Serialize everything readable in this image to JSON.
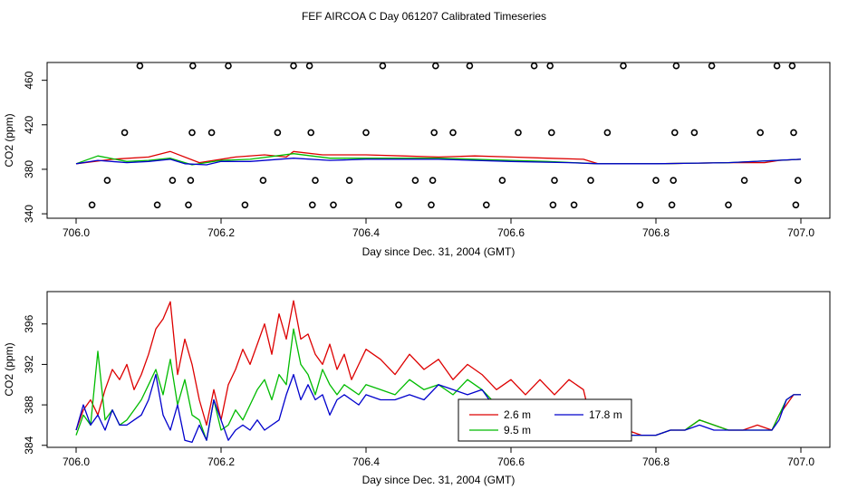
{
  "figure_title": "FEF AIRCOA C  Day 061207  Calibrated Timeseries",
  "colors": {
    "red": "#dd0000",
    "green": "#00bb00",
    "blue": "#0000cc",
    "axis": "#000000"
  },
  "chart_data": [
    {
      "type": "line",
      "name": "top-panel",
      "xlabel": "Day since Dec. 31, 2004 (GMT)",
      "ylabel": "CO2 (ppm)",
      "xlim": [
        705.96,
        707.04
      ],
      "ylim": [
        336,
        476
      ],
      "xticks": [
        706.0,
        706.2,
        706.4,
        706.6,
        706.8,
        707.0
      ],
      "xtick_labels": [
        "706.0",
        "706.2",
        "706.4",
        "706.6",
        "706.8",
        "707.0"
      ],
      "yticks": [
        340,
        380,
        420,
        460
      ],
      "ytick_labels": [
        "340",
        "380",
        "420",
        "460"
      ],
      "series": [
        {
          "name": "2.6 m",
          "color": "red",
          "x": [
            706.0,
            706.05,
            706.1,
            706.13,
            706.17,
            706.22,
            706.26,
            706.29,
            706.3,
            706.34,
            706.4,
            706.45,
            706.5,
            706.55,
            706.6,
            706.65,
            706.7,
            706.72,
            706.8,
            706.9,
            706.95,
            706.97,
            707.0
          ],
          "y": [
            385,
            389,
            391,
            396,
            386,
            391,
            393,
            391,
            396,
            393,
            393,
            392,
            391,
            392,
            391,
            390,
            389,
            385,
            385,
            386,
            386,
            388,
            389
          ]
        },
        {
          "name": "9.5 m",
          "color": "green",
          "x": [
            706.0,
            706.03,
            706.07,
            706.1,
            706.13,
            706.16,
            706.2,
            706.24,
            706.3,
            706.35,
            706.4,
            706.5,
            706.6,
            706.65,
            706.72,
            706.8,
            706.9,
            707.0
          ],
          "y": [
            385,
            392,
            387,
            388,
            390,
            384,
            388,
            389,
            394,
            390,
            390,
            390,
            388,
            387,
            385,
            385,
            386,
            389
          ]
        },
        {
          "name": "17.8 m",
          "color": "blue",
          "x": [
            706.0,
            706.03,
            706.07,
            706.1,
            706.13,
            706.15,
            706.18,
            706.2,
            706.24,
            706.3,
            706.35,
            706.4,
            706.5,
            706.6,
            706.68,
            706.72,
            706.8,
            706.9,
            707.0
          ],
          "y": [
            385,
            388,
            386,
            387,
            389,
            385,
            384,
            387,
            387,
            390,
            388,
            389,
            389,
            387,
            386,
            385,
            385,
            386,
            389
          ]
        }
      ],
      "markers": {
        "type": "scatter",
        "name": "calibration points",
        "x": [
          706.022,
          706.043,
          706.067,
          706.088,
          706.112,
          706.133,
          706.155,
          706.158,
          706.16,
          706.161,
          706.187,
          706.21,
          706.233,
          706.258,
          706.278,
          706.3,
          706.322,
          706.324,
          706.326,
          706.33,
          706.355,
          706.377,
          706.4,
          706.423,
          706.445,
          706.468,
          706.49,
          706.492,
          706.494,
          706.496,
          706.52,
          706.543,
          706.566,
          706.588,
          706.61,
          706.632,
          706.654,
          706.656,
          706.658,
          706.66,
          706.687,
          706.71,
          706.733,
          706.755,
          706.778,
          706.8,
          706.822,
          706.824,
          706.826,
          706.828,
          706.853,
          706.877,
          706.9,
          706.922,
          706.944,
          706.967,
          706.988,
          706.99,
          706.993,
          706.996
        ],
        "y": [
          348,
          370,
          413,
          473,
          348,
          370,
          348,
          370,
          413,
          473,
          413,
          473,
          348,
          370,
          413,
          473,
          473,
          413,
          348,
          370,
          348,
          370,
          413,
          473,
          348,
          370,
          348,
          370,
          413,
          473,
          413,
          473,
          348,
          370,
          413,
          473,
          473,
          413,
          348,
          370,
          348,
          370,
          413,
          473,
          348,
          370,
          348,
          370,
          413,
          473,
          413,
          473,
          348,
          370,
          413,
          473,
          473,
          413,
          348,
          370
        ]
      }
    },
    {
      "type": "line",
      "name": "bottom-panel",
      "xlabel": "Day since Dec. 31, 2004 (GMT)",
      "ylabel": "CO2 (ppm)",
      "xlim": [
        705.96,
        707.04
      ],
      "ylim": [
        383.8,
        399.2
      ],
      "xticks": [
        706.0,
        706.2,
        706.4,
        706.6,
        706.8,
        707.0
      ],
      "xtick_labels": [
        "706.0",
        "706.2",
        "706.4",
        "706.6",
        "706.8",
        "707.0"
      ],
      "yticks": [
        384,
        388,
        392,
        396
      ],
      "ytick_labels": [
        "384",
        "388",
        "392",
        "396"
      ],
      "legend": {
        "position": "bottom-center",
        "entries": [
          "2.6 m",
          "9.5 m",
          "17.8 m"
        ]
      },
      "series": [
        {
          "name": "2.6 m",
          "color": "red",
          "x": [
            706.0,
            706.01,
            706.02,
            706.03,
            706.04,
            706.05,
            706.06,
            706.07,
            706.08,
            706.09,
            706.1,
            706.11,
            706.12,
            706.13,
            706.14,
            706.15,
            706.16,
            706.17,
            706.18,
            706.19,
            706.2,
            706.21,
            706.22,
            706.23,
            706.24,
            706.25,
            706.26,
            706.27,
            706.28,
            706.29,
            706.3,
            706.31,
            706.32,
            706.33,
            706.34,
            706.35,
            706.36,
            706.37,
            706.38,
            706.39,
            706.4,
            706.42,
            706.44,
            706.46,
            706.48,
            706.5,
            706.52,
            706.54,
            706.56,
            706.58,
            706.6,
            706.62,
            706.64,
            706.66,
            706.68,
            706.7,
            706.71,
            706.72,
            706.74,
            706.76,
            706.78,
            706.8,
            706.82,
            706.84,
            706.86,
            706.88,
            706.9,
            706.92,
            706.94,
            706.96,
            706.97,
            706.98,
            706.99,
            707.0
          ],
          "y": [
            385.5,
            387.5,
            388.5,
            387.0,
            389.5,
            391.5,
            390.5,
            392.0,
            389.5,
            391.0,
            393.0,
            395.5,
            396.5,
            398.2,
            391.0,
            394.5,
            392.0,
            388.5,
            386.0,
            389.5,
            386.5,
            390.0,
            391.5,
            393.5,
            392.0,
            394.0,
            396.0,
            393.0,
            397.0,
            394.5,
            398.3,
            394.5,
            395.0,
            393.0,
            392.0,
            394.0,
            391.5,
            393.0,
            390.5,
            392.0,
            393.5,
            392.5,
            391.0,
            393.0,
            391.5,
            392.5,
            390.5,
            392.0,
            391.0,
            389.5,
            390.5,
            389.0,
            390.5,
            389.0,
            390.5,
            389.5,
            386.5,
            386.0,
            386.0,
            385.5,
            385.0,
            385.0,
            385.5,
            385.5,
            386.5,
            386.0,
            385.5,
            385.5,
            386.0,
            385.5,
            387.0,
            388.0,
            389.0,
            389.0
          ]
        },
        {
          "name": "9.5 m",
          "color": "green",
          "x": [
            706.0,
            706.01,
            706.02,
            706.03,
            706.04,
            706.05,
            706.06,
            706.07,
            706.08,
            706.09,
            706.1,
            706.11,
            706.12,
            706.13,
            706.14,
            706.15,
            706.16,
            706.17,
            706.18,
            706.19,
            706.2,
            706.21,
            706.22,
            706.23,
            706.24,
            706.25,
            706.26,
            706.27,
            706.28,
            706.29,
            706.3,
            706.31,
            706.32,
            706.33,
            706.34,
            706.35,
            706.36,
            706.37,
            706.38,
            706.39,
            706.4,
            706.42,
            706.44,
            706.46,
            706.48,
            706.5,
            706.52,
            706.54,
            706.56,
            706.58,
            706.6,
            706.62,
            706.64,
            706.66,
            706.68,
            706.7,
            706.71,
            706.72,
            706.74,
            706.76,
            706.78,
            706.8,
            706.82,
            706.84,
            706.86,
            706.88,
            706.9,
            706.92,
            706.94,
            706.96,
            706.97,
            706.98,
            706.99,
            707.0
          ],
          "y": [
            385.0,
            387.0,
            386.0,
            393.3,
            386.5,
            387.5,
            386.0,
            386.5,
            387.5,
            388.5,
            390.0,
            391.5,
            389.0,
            392.5,
            388.0,
            390.5,
            387.0,
            386.5,
            384.5,
            388.5,
            385.5,
            386.0,
            387.5,
            386.5,
            388.0,
            389.5,
            390.5,
            388.5,
            391.0,
            390.0,
            395.5,
            392.0,
            391.0,
            389.0,
            391.5,
            390.0,
            389.0,
            390.0,
            389.5,
            389.0,
            390.0,
            389.5,
            389.0,
            390.5,
            389.5,
            390.0,
            389.0,
            390.5,
            389.5,
            388.0,
            388.5,
            388.0,
            388.5,
            387.5,
            388.5,
            386.5,
            386.5,
            385.8,
            385.5,
            385.0,
            385.0,
            385.0,
            385.5,
            385.5,
            386.5,
            386.0,
            385.5,
            385.5,
            385.5,
            385.5,
            387.0,
            388.5,
            389.0,
            389.0
          ]
        },
        {
          "name": "17.8 m",
          "color": "blue",
          "x": [
            706.0,
            706.01,
            706.02,
            706.03,
            706.04,
            706.05,
            706.06,
            706.07,
            706.08,
            706.09,
            706.1,
            706.11,
            706.12,
            706.13,
            706.14,
            706.15,
            706.16,
            706.17,
            706.18,
            706.19,
            706.2,
            706.21,
            706.22,
            706.23,
            706.24,
            706.25,
            706.26,
            706.27,
            706.28,
            706.29,
            706.3,
            706.31,
            706.32,
            706.33,
            706.34,
            706.35,
            706.36,
            706.37,
            706.38,
            706.39,
            706.4,
            706.42,
            706.44,
            706.46,
            706.48,
            706.5,
            706.52,
            706.54,
            706.56,
            706.58,
            706.6,
            706.62,
            706.64,
            706.66,
            706.68,
            706.7,
            706.71,
            706.72,
            706.74,
            706.76,
            706.78,
            706.8,
            706.82,
            706.84,
            706.86,
            706.88,
            706.9,
            706.92,
            706.94,
            706.96,
            706.97,
            706.98,
            706.99,
            707.0
          ],
          "y": [
            385.5,
            388.0,
            386.0,
            387.0,
            385.5,
            387.5,
            386.0,
            386.0,
            386.5,
            387.0,
            388.5,
            391.0,
            387.0,
            385.5,
            388.0,
            384.5,
            384.3,
            386.0,
            384.5,
            388.5,
            386.5,
            384.5,
            385.5,
            386.0,
            385.5,
            386.5,
            385.5,
            386.0,
            386.5,
            389.0,
            391.0,
            388.5,
            390.0,
            388.5,
            389.0,
            387.0,
            388.5,
            389.0,
            388.5,
            388.0,
            389.0,
            388.5,
            388.5,
            389.0,
            388.5,
            390.0,
            389.5,
            389.0,
            389.5,
            387.5,
            388.0,
            387.5,
            387.5,
            386.5,
            386.0,
            385.5,
            385.5,
            385.2,
            385.0,
            385.0,
            385.0,
            385.0,
            385.5,
            385.5,
            386.0,
            385.5,
            385.5,
            385.5,
            385.5,
            385.5,
            386.5,
            388.5,
            389.0,
            389.0
          ]
        }
      ]
    }
  ]
}
